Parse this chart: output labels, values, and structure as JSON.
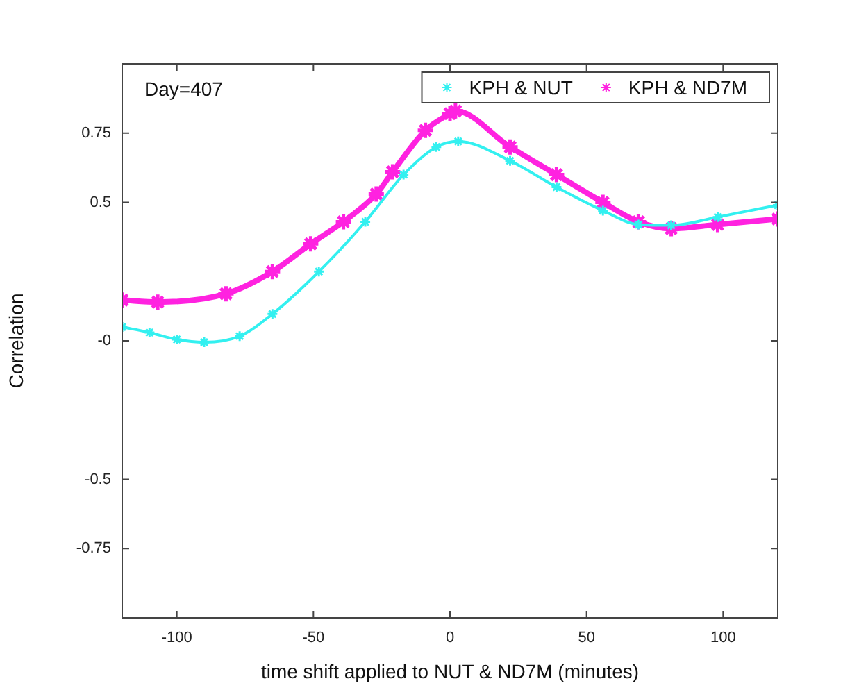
{
  "chart_data": {
    "type": "line",
    "xlabel": "time shift applied to NUT & ND7M (minutes)",
    "ylabel": "Correlation",
    "annotations": [
      "Day=407"
    ],
    "legend": "top right",
    "marker": "cross",
    "grid": false,
    "xlim": [
      -120,
      120
    ],
    "xticks": [
      -100,
      -50,
      0,
      50,
      100
    ],
    "ylim": [
      -1,
      1
    ],
    "yticks": [
      -0.75,
      -0.5,
      {
        "value": 0,
        "label": "-0"
      },
      0.5,
      0.75
    ],
    "series": [
      {
        "name": "KPH & NUT",
        "color": "#33f0f0",
        "x": [
          -120,
          -110,
          -100,
          -90,
          -77,
          -65,
          -48,
          -31,
          -17,
          -5,
          3,
          22,
          39,
          56,
          69,
          81,
          98,
          120
        ],
        "values": [
          0.05,
          0.03,
          0.005,
          -0.005,
          0.017,
          0.097,
          0.25,
          0.43,
          0.6,
          0.7,
          0.72,
          0.65,
          0.555,
          0.47,
          0.42,
          0.417,
          0.447,
          0.49
        ]
      },
      {
        "name": "KPH & ND7M",
        "color": "#ff22e0",
        "x": [
          -120,
          -107,
          -82,
          -65,
          -51,
          -39,
          -27,
          -21,
          -9,
          0,
          2,
          22,
          39,
          56,
          69,
          81,
          98,
          120
        ],
        "values": [
          0.147,
          0.14,
          0.17,
          0.25,
          0.35,
          0.43,
          0.53,
          0.61,
          0.76,
          0.82,
          0.83,
          0.7,
          0.6,
          0.5,
          0.43,
          0.405,
          0.42,
          0.44
        ]
      }
    ]
  }
}
